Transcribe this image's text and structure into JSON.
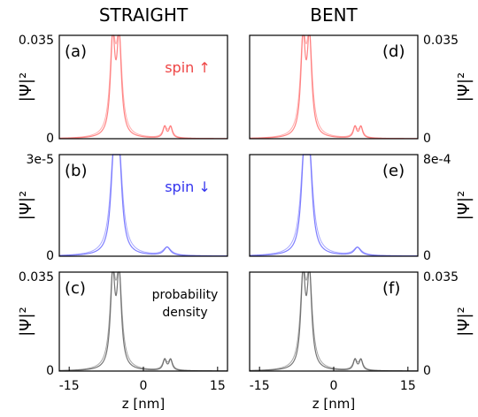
{
  "chart_data": [
    {
      "id": "a",
      "type": "line",
      "column_title": "STRAIGHT",
      "panel_label": "(a)",
      "annotation": "spin ↑",
      "annotation_color": "#ee4444",
      "series_color": "#ff7777",
      "ylabel": "|Ψ|²",
      "y_ticks": [
        "0.035",
        "0"
      ],
      "ylim": [
        0,
        0.035
      ],
      "xlim": [
        -17,
        17
      ],
      "x_ticks": [],
      "peaks": [
        {
          "z": -6.2,
          "height": 0.032,
          "width": 0.55
        },
        {
          "z": -4.9,
          "height": 0.032,
          "width": 0.55
        },
        {
          "z": 4.3,
          "height": 0.0038,
          "width": 0.4
        },
        {
          "z": 5.5,
          "height": 0.0038,
          "width": 0.4
        }
      ]
    },
    {
      "id": "b",
      "type": "line",
      "column_title": "",
      "panel_label": "(b)",
      "annotation": "spin ↓",
      "annotation_color": "#3333ee",
      "series_color": "#6f6fff",
      "ylabel": "|Ψ|²",
      "y_ticks": [
        "3e-5",
        "0"
      ],
      "ylim": [
        0,
        3e-05
      ],
      "xlim": [
        -17,
        17
      ],
      "x_ticks": [],
      "peaks": [
        {
          "z": -6.0,
          "height": 2.55e-05,
          "width": 0.7
        },
        {
          "z": -4.9,
          "height": 2.55e-05,
          "width": 0.7
        },
        {
          "z": 4.8,
          "height": 2.5e-06,
          "width": 0.8
        }
      ]
    },
    {
      "id": "c",
      "type": "line",
      "column_title": "",
      "panel_label": "(c)",
      "annotation": "probability density",
      "annotation_color": "#222222",
      "series_color": "#666666",
      "ylabel": "|Ψ|²",
      "y_ticks": [
        "0.035",
        "0"
      ],
      "ylim": [
        0,
        0.035
      ],
      "xlim": [
        -17,
        17
      ],
      "x_ticks": [
        "-15",
        "0",
        "15"
      ],
      "xlabel": "z [nm]",
      "peaks": [
        {
          "z": -6.2,
          "height": 0.032,
          "width": 0.55
        },
        {
          "z": -4.9,
          "height": 0.032,
          "width": 0.55
        },
        {
          "z": 4.3,
          "height": 0.0038,
          "width": 0.4
        },
        {
          "z": 5.5,
          "height": 0.0038,
          "width": 0.4
        }
      ]
    },
    {
      "id": "d",
      "type": "line",
      "column_title": "BENT",
      "panel_label": "(d)",
      "annotation": "",
      "annotation_color": "#000000",
      "series_color": "#ff7777",
      "ylabel": "|Ψ|²",
      "y_ticks": [
        "0.035",
        "0"
      ],
      "ylim": [
        0,
        0.035
      ],
      "xlim": [
        -17,
        17
      ],
      "x_ticks": [],
      "peaks": [
        {
          "z": -6.2,
          "height": 0.032,
          "width": 0.55
        },
        {
          "z": -4.9,
          "height": 0.032,
          "width": 0.55
        },
        {
          "z": 4.3,
          "height": 0.0038,
          "width": 0.4
        },
        {
          "z": 5.5,
          "height": 0.0038,
          "width": 0.4
        }
      ]
    },
    {
      "id": "e",
      "type": "line",
      "column_title": "",
      "panel_label": "(e)",
      "annotation": "",
      "annotation_color": "#000000",
      "series_color": "#6f6fff",
      "ylabel": "|Ψ|²",
      "y_ticks": [
        "8e-4",
        "0"
      ],
      "ylim": [
        0,
        0.0008
      ],
      "xlim": [
        -17,
        17
      ],
      "x_ticks": [],
      "peaks": [
        {
          "z": -6.0,
          "height": 0.00068,
          "width": 0.7
        },
        {
          "z": -4.9,
          "height": 0.00068,
          "width": 0.7
        },
        {
          "z": 4.8,
          "height": 6.5e-05,
          "width": 0.8
        }
      ]
    },
    {
      "id": "f",
      "type": "line",
      "column_title": "",
      "panel_label": "(f)",
      "annotation": "",
      "annotation_color": "#000000",
      "series_color": "#666666",
      "ylabel": "|Ψ|²",
      "y_ticks": [
        "0.035",
        "0"
      ],
      "ylim": [
        0,
        0.035
      ],
      "xlim": [
        -17,
        17
      ],
      "x_ticks": [
        "-15",
        "0",
        "15"
      ],
      "xlabel": "z [nm]",
      "peaks": [
        {
          "z": -6.2,
          "height": 0.032,
          "width": 0.55
        },
        {
          "z": -4.9,
          "height": 0.032,
          "width": 0.55
        },
        {
          "z": 4.3,
          "height": 0.0038,
          "width": 0.4
        },
        {
          "z": 5.5,
          "height": 0.0038,
          "width": 0.4
        }
      ]
    }
  ]
}
